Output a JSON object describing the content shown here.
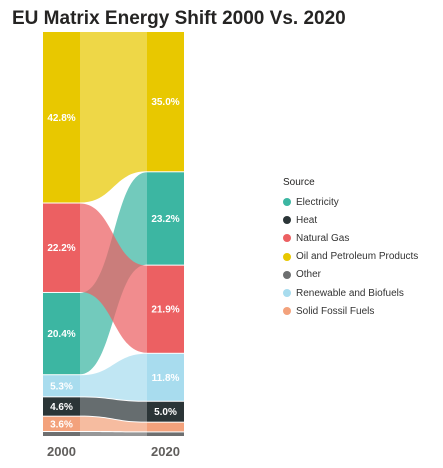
{
  "chart_data": {
    "type": "ribbon",
    "title": "EU Matrix Energy Shift 2000 Vs. 2020",
    "categories": [
      "2000",
      "2020"
    ],
    "legend_title": "Source",
    "legend_position": "right",
    "series": [
      {
        "name": "Electricity",
        "color": "#3CB6A2",
        "values": [
          20.4,
          23.2
        ],
        "labels": [
          "20.4%",
          "23.2%"
        ]
      },
      {
        "name": "Heat",
        "color": "#2B3537",
        "values": [
          4.6,
          5.0
        ],
        "labels": [
          "4.6%",
          "5.0%"
        ]
      },
      {
        "name": "Natural Gas",
        "color": "#EC6062",
        "values": [
          22.2,
          21.9
        ],
        "labels": [
          "22.2%",
          "21.9%"
        ]
      },
      {
        "name": "Oil and Petroleum Products",
        "color": "#E8C800",
        "values": [
          42.8,
          35.0
        ],
        "labels": [
          "42.8%",
          "35.0%"
        ]
      },
      {
        "name": "Other",
        "color": "#6D6F70",
        "values": [
          1.0,
          0.9
        ],
        "labels": [
          "",
          ""
        ]
      },
      {
        "name": "Renewable and Biofuels",
        "color": "#A8DCEE",
        "values": [
          5.3,
          11.8
        ],
        "labels": [
          "5.3%",
          "11.8%"
        ]
      },
      {
        "name": "Solid Fossil Fuels",
        "color": "#F3A27C",
        "values": [
          3.6,
          2.2
        ],
        "labels": [
          "3.6%",
          ""
        ]
      }
    ],
    "rank": [
      [
        "Oil and Petroleum Products",
        "Natural Gas",
        "Electricity",
        "Renewable and Biofuels",
        "Heat",
        "Solid Fossil Fuels",
        "Other"
      ],
      [
        "Oil and Petroleum Products",
        "Electricity",
        "Natural Gas",
        "Renewable and Biofuels",
        "Heat",
        "Solid Fossil Fuels",
        "Other"
      ]
    ]
  }
}
